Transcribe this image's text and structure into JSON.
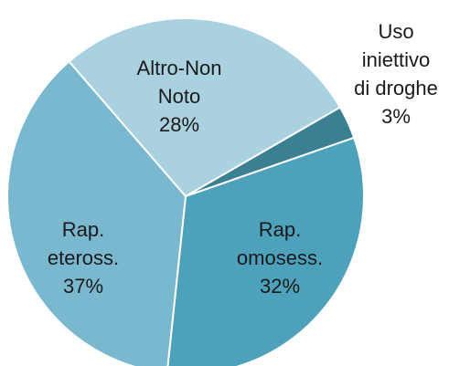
{
  "chart_data": {
    "type": "pie",
    "slices": [
      {
        "label_lines": [
          "Uso",
          "iniettivo",
          "di droghe"
        ],
        "value": 3,
        "value_label": "3%",
        "color": "#3b7f93"
      },
      {
        "label_lines": [
          "Rap.",
          "omosess."
        ],
        "value": 32,
        "value_label": "32%",
        "color": "#4da1bb"
      },
      {
        "label_lines": [
          "Rap.",
          "eteross."
        ],
        "value": 37,
        "value_label": "37%",
        "color": "#7ab8d0"
      },
      {
        "label_lines": [
          "Altro-Non",
          "Noto"
        ],
        "value": 28,
        "value_label": "28%",
        "color": "#a9d1df"
      }
    ]
  }
}
